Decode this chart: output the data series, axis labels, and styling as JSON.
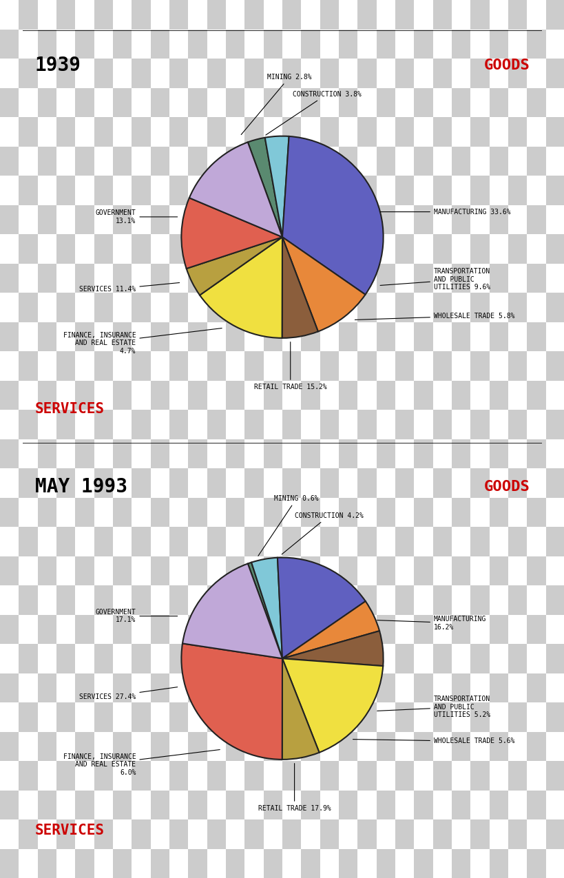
{
  "chart1": {
    "year": "1939",
    "slices": [
      {
        "label": "MINING 2.8%",
        "value": 2.8,
        "color": "#5A8A70"
      },
      {
        "label": "CONSTRUCTION 3.8%",
        "value": 3.8,
        "color": "#80C8D8"
      },
      {
        "label": "MANUFACTURING 33.6%",
        "value": 33.6,
        "color": "#6060C0"
      },
      {
        "label": "TRANSPORTATION\nAND PUBLIC\nUTILITIES 9.6%",
        "value": 9.6,
        "color": "#E8883A"
      },
      {
        "label": "WHOLESALE TRADE 5.8%",
        "value": 5.8,
        "color": "#8B5E3C"
      },
      {
        "label": "RETAIL TRADE 15.2%",
        "value": 15.2,
        "color": "#F0E040"
      },
      {
        "label": "FINANCE, INSURANCE\nAND REAL ESTATE\n4.7%",
        "value": 4.7,
        "color": "#B8A040"
      },
      {
        "label": "SERVICES 11.4%",
        "value": 11.4,
        "color": "#E06050"
      },
      {
        "label": "GOVERNMENT\n13.1%",
        "value": 13.1,
        "color": "#C0A8D8"
      }
    ],
    "goods_label": "GOODS",
    "services_label": "SERVICES"
  },
  "chart2": {
    "year": "MAY 1993",
    "slices": [
      {
        "label": "MINING 0.6%",
        "value": 0.6,
        "color": "#5A8A70"
      },
      {
        "label": "CONSTRUCTION 4.2%",
        "value": 4.2,
        "color": "#80C8D8"
      },
      {
        "label": "MANUFACTURING\n16.2%",
        "value": 16.2,
        "color": "#6060C0"
      },
      {
        "label": "TRANSPORTATION\nAND PUBLIC\nUTILITIES 5.2%",
        "value": 5.2,
        "color": "#E8883A"
      },
      {
        "label": "WHOLESALE TRADE 5.6%",
        "value": 5.6,
        "color": "#8B5E3C"
      },
      {
        "label": "RETAIL TRADE 17.9%",
        "value": 17.9,
        "color": "#F0E040"
      },
      {
        "label": "FINANCE, INSURANCE\nAND REAL ESTATE\n6.0%",
        "value": 6.0,
        "color": "#B8A040"
      },
      {
        "label": "SERVICES 27.4%",
        "value": 27.4,
        "color": "#E06050"
      },
      {
        "label": "GOVERNMENT\n17.1%",
        "value": 17.1,
        "color": "#C0A8D8"
      }
    ],
    "goods_label": "GOODS",
    "services_label": "SERVICES"
  },
  "font_size_year": 20,
  "font_size_label": 7,
  "font_size_goods": 16,
  "goods_color": "#CC0000",
  "services_color": "#CC0000",
  "text_color": "#000000",
  "pie_edge_color": "#222222",
  "pie_linewidth": 1.5,
  "checker_color1": "#CCCCCC",
  "checker_color2": "#FFFFFF"
}
